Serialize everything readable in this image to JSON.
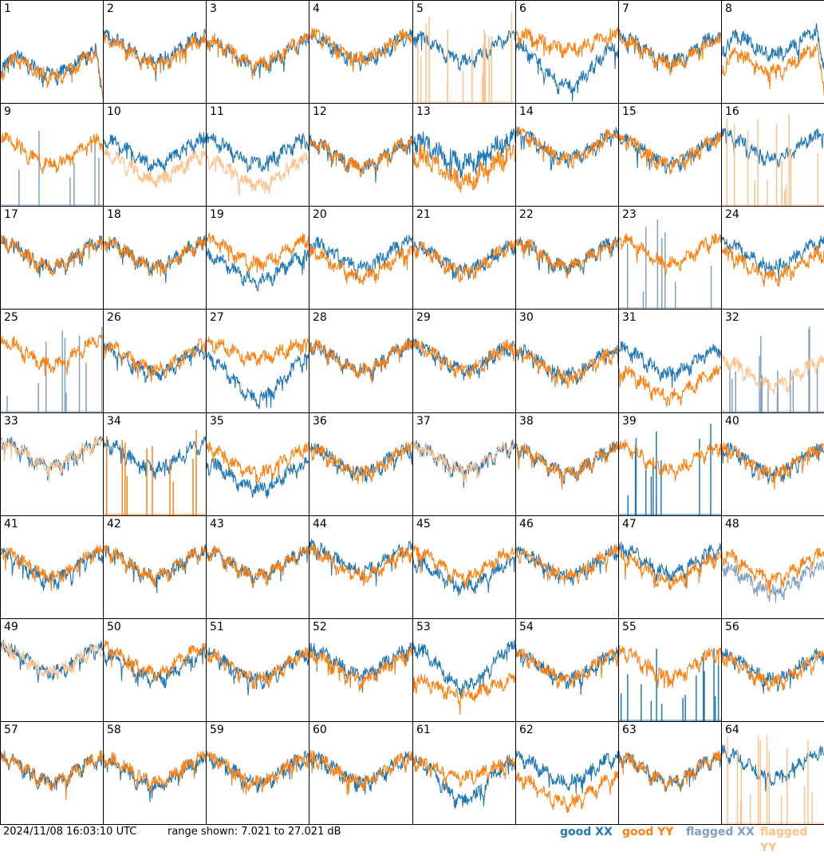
{
  "footer": {
    "timestamp": "2024/11/08 16:03:10 UTC",
    "range": "range shown: 7.021 to 27.021 dB"
  },
  "legend": [
    {
      "label": "good XX",
      "color": "#1f77b4"
    },
    {
      "label": "good YY",
      "color": "#ff7f0e"
    },
    {
      "label": "flagged XX",
      "color": "#7f9fbf"
    },
    {
      "label": "flagged YY",
      "color": "#ffc08a"
    }
  ],
  "chart_data": {
    "type": "line",
    "layout": "small-multiples 8x8",
    "y_range_db": [
      7.021,
      27.021
    ],
    "series_names": [
      "good XX",
      "good YY",
      "flagged XX",
      "flagged YY"
    ],
    "tiles": [
      {
        "id": "1",
        "xx": "good",
        "yy": "good",
        "xx_level": 0.42,
        "yy_level": 0.4,
        "xx_dip": 0.15,
        "yy_dip": 0.25,
        "variant": "droop"
      },
      {
        "id": "2",
        "xx": "good",
        "yy": "good",
        "xx_level": 0.55,
        "yy_level": 0.52,
        "variant": "normal"
      },
      {
        "id": "3",
        "xx": "good",
        "yy": "good",
        "xx_level": 0.5,
        "yy_level": 0.52,
        "variant": "normal"
      },
      {
        "id": "4",
        "xx": "good",
        "yy": "good",
        "xx_level": 0.55,
        "yy_level": 0.57,
        "variant": "normal"
      },
      {
        "id": "5",
        "xx": "good",
        "yy": "flagged-spikes",
        "xx_level": 0.55,
        "yy_level": 0.0,
        "variant": "xx-only"
      },
      {
        "id": "6",
        "xx": "good",
        "yy": "good",
        "xx_level": 0.38,
        "yy_level": 0.62,
        "variant": "split"
      },
      {
        "id": "7",
        "xx": "good",
        "yy": "good",
        "xx_level": 0.55,
        "yy_level": 0.52,
        "variant": "normal"
      },
      {
        "id": "8",
        "xx": "good",
        "yy": "good",
        "xx_level": 0.62,
        "yy_level": 0.45,
        "variant": "droop"
      },
      {
        "id": "9",
        "xx": "flagged-spikes",
        "yy": "good",
        "xx_level": 0.0,
        "yy_level": 0.55,
        "variant": "yy-only"
      },
      {
        "id": "10",
        "xx": "good",
        "yy": "flagged",
        "xx_level": 0.55,
        "yy_level": 0.4,
        "variant": "normal"
      },
      {
        "id": "11",
        "xx": "good",
        "yy": "flagged",
        "xx_level": 0.55,
        "yy_level": 0.35,
        "variant": "normal"
      },
      {
        "id": "12",
        "xx": "good",
        "yy": "good",
        "xx_level": 0.52,
        "yy_level": 0.52,
        "variant": "normal"
      },
      {
        "id": "13",
        "xx": "good",
        "yy": "good",
        "xx_level": 0.55,
        "yy_level": 0.4,
        "variant": "noisy"
      },
      {
        "id": "14",
        "xx": "good",
        "yy": "good",
        "xx_level": 0.6,
        "yy_level": 0.6,
        "variant": "normal"
      },
      {
        "id": "15",
        "xx": "good",
        "yy": "good",
        "xx_level": 0.55,
        "yy_level": 0.55,
        "variant": "normal"
      },
      {
        "id": "16",
        "xx": "good",
        "yy": "flagged-spikes",
        "xx_level": 0.6,
        "yy_level": 0.0,
        "variant": "xx-only"
      },
      {
        "id": "17",
        "xx": "good",
        "yy": "good",
        "xx_level": 0.55,
        "yy_level": 0.55,
        "variant": "normal"
      },
      {
        "id": "18",
        "xx": "good",
        "yy": "good",
        "xx_level": 0.55,
        "yy_level": 0.55,
        "variant": "normal"
      },
      {
        "id": "19",
        "xx": "good",
        "yy": "good",
        "xx_level": 0.42,
        "yy_level": 0.58,
        "variant": "normal"
      },
      {
        "id": "20",
        "xx": "good",
        "yy": "good",
        "xx_level": 0.55,
        "yy_level": 0.45,
        "variant": "normal"
      },
      {
        "id": "21",
        "xx": "good",
        "yy": "good",
        "xx_level": 0.52,
        "yy_level": 0.5,
        "variant": "normal"
      },
      {
        "id": "22",
        "xx": "good",
        "yy": "good",
        "xx_level": 0.55,
        "yy_level": 0.55,
        "variant": "normal"
      },
      {
        "id": "23",
        "xx": "flagged-spikes",
        "yy": "good",
        "xx_level": 0.0,
        "yy_level": 0.58,
        "variant": "yy-only"
      },
      {
        "id": "24",
        "xx": "good",
        "yy": "good",
        "xx_level": 0.55,
        "yy_level": 0.45,
        "variant": "normal"
      },
      {
        "id": "25",
        "xx": "flagged-spikes",
        "yy": "good",
        "xx_level": 0.0,
        "yy_level": 0.6,
        "variant": "yy-only"
      },
      {
        "id": "26",
        "xx": "good",
        "yy": "good",
        "xx_level": 0.52,
        "yy_level": 0.55,
        "variant": "normal"
      },
      {
        "id": "27",
        "xx": "good",
        "yy": "good",
        "xx_level": 0.35,
        "yy_level": 0.62,
        "variant": "split"
      },
      {
        "id": "28",
        "xx": "good",
        "yy": "good",
        "xx_level": 0.55,
        "yy_level": 0.55,
        "variant": "normal"
      },
      {
        "id": "29",
        "xx": "good",
        "yy": "good",
        "xx_level": 0.55,
        "yy_level": 0.55,
        "variant": "normal"
      },
      {
        "id": "30",
        "xx": "good",
        "yy": "good",
        "xx_level": 0.5,
        "yy_level": 0.48,
        "variant": "normal"
      },
      {
        "id": "31",
        "xx": "good",
        "yy": "good",
        "xx_level": 0.52,
        "yy_level": 0.3,
        "variant": "normal"
      },
      {
        "id": "32",
        "xx": "flagged-spikes",
        "yy": "flagged",
        "xx_level": 0.0,
        "yy_level": 0.4,
        "variant": "flagged"
      },
      {
        "id": "33",
        "xx": "good",
        "yy": "flagged",
        "xx_level": 0.62,
        "yy_level": 0.62,
        "variant": "normal"
      },
      {
        "id": "34",
        "xx": "good",
        "yy": "good-spikes",
        "xx_level": 0.6,
        "yy_level": 0.0,
        "variant": "xx-only"
      },
      {
        "id": "35",
        "xx": "good",
        "yy": "good",
        "xx_level": 0.4,
        "yy_level": 0.55,
        "variant": "normal"
      },
      {
        "id": "36",
        "xx": "good",
        "yy": "good",
        "xx_level": 0.55,
        "yy_level": 0.55,
        "variant": "normal"
      },
      {
        "id": "37",
        "xx": "good",
        "yy": "flagged",
        "xx_level": 0.58,
        "yy_level": 0.58,
        "variant": "normal"
      },
      {
        "id": "38",
        "xx": "good",
        "yy": "good",
        "xx_level": 0.55,
        "yy_level": 0.55,
        "variant": "normal"
      },
      {
        "id": "39",
        "xx": "good-spikes",
        "yy": "good",
        "xx_level": 0.0,
        "yy_level": 0.58,
        "variant": "yy-only"
      },
      {
        "id": "40",
        "xx": "good",
        "yy": "good",
        "xx_level": 0.55,
        "yy_level": 0.55,
        "variant": "normal"
      },
      {
        "id": "41",
        "xx": "good",
        "yy": "good",
        "xx_level": 0.52,
        "yy_level": 0.55,
        "variant": "normal"
      },
      {
        "id": "42",
        "xx": "good",
        "yy": "good",
        "xx_level": 0.55,
        "yy_level": 0.55,
        "variant": "normal"
      },
      {
        "id": "43",
        "xx": "good",
        "yy": "good",
        "xx_level": 0.55,
        "yy_level": 0.55,
        "variant": "normal"
      },
      {
        "id": "44",
        "xx": "good",
        "yy": "good",
        "xx_level": 0.6,
        "yy_level": 0.55,
        "variant": "normal"
      },
      {
        "id": "45",
        "xx": "good",
        "yy": "good",
        "xx_level": 0.45,
        "yy_level": 0.55,
        "variant": "normal"
      },
      {
        "id": "46",
        "xx": "good",
        "yy": "good",
        "xx_level": 0.55,
        "yy_level": 0.55,
        "variant": "normal"
      },
      {
        "id": "47",
        "xx": "good",
        "yy": "good",
        "xx_level": 0.58,
        "yy_level": 0.5,
        "variant": "normal"
      },
      {
        "id": "48",
        "xx": "flagged",
        "yy": "good",
        "xx_level": 0.4,
        "yy_level": 0.52,
        "variant": "normal"
      },
      {
        "id": "49",
        "xx": "good",
        "yy": "flagged",
        "xx_level": 0.62,
        "yy_level": 0.62,
        "variant": "normal"
      },
      {
        "id": "50",
        "xx": "good",
        "yy": "good",
        "xx_level": 0.55,
        "yy_level": 0.62,
        "variant": "normal"
      },
      {
        "id": "51",
        "xx": "good",
        "yy": "good",
        "xx_level": 0.55,
        "yy_level": 0.55,
        "variant": "normal"
      },
      {
        "id": "52",
        "xx": "good",
        "yy": "good",
        "xx_level": 0.6,
        "yy_level": 0.55,
        "variant": "normal"
      },
      {
        "id": "53",
        "xx": "good",
        "yy": "good",
        "xx_level": 0.55,
        "yy_level": 0.35,
        "variant": "split"
      },
      {
        "id": "54",
        "xx": "good",
        "yy": "good",
        "xx_level": 0.55,
        "yy_level": 0.55,
        "variant": "normal"
      },
      {
        "id": "55",
        "xx": "good-spikes",
        "yy": "good",
        "xx_level": 0.0,
        "yy_level": 0.58,
        "variant": "yy-only"
      },
      {
        "id": "56",
        "xx": "good",
        "yy": "good",
        "xx_level": 0.55,
        "yy_level": 0.52,
        "variant": "normal"
      },
      {
        "id": "57",
        "xx": "good",
        "yy": "good",
        "xx_level": 0.55,
        "yy_level": 0.55,
        "variant": "normal"
      },
      {
        "id": "58",
        "xx": "good",
        "yy": "good",
        "xx_level": 0.52,
        "yy_level": 0.55,
        "variant": "normal"
      },
      {
        "id": "59",
        "xx": "good",
        "yy": "good",
        "xx_level": 0.55,
        "yy_level": 0.55,
        "variant": "normal"
      },
      {
        "id": "60",
        "xx": "good",
        "yy": "good",
        "xx_level": 0.55,
        "yy_level": 0.55,
        "variant": "normal"
      },
      {
        "id": "61",
        "xx": "good",
        "yy": "good",
        "xx_level": 0.45,
        "yy_level": 0.55,
        "variant": "split"
      },
      {
        "id": "62",
        "xx": "good",
        "yy": "good",
        "xx_level": 0.55,
        "yy_level": 0.35,
        "variant": "normal"
      },
      {
        "id": "63",
        "xx": "good",
        "yy": "good",
        "xx_level": 0.55,
        "yy_level": 0.55,
        "variant": "normal"
      },
      {
        "id": "64",
        "xx": "good",
        "yy": "flagged-spikes",
        "xx_level": 0.6,
        "yy_level": 0.0,
        "variant": "xx-only"
      }
    ]
  }
}
